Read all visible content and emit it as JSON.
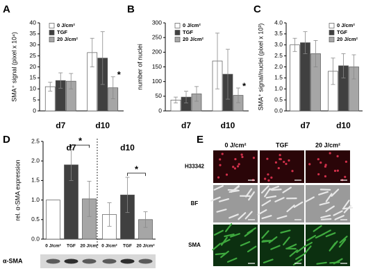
{
  "chart_data": [
    {
      "type": "bar",
      "panel": "A",
      "ylabel": "SMA⁺ signal (pixel x 10⁴)",
      "categories": [
        "d7",
        "d10"
      ],
      "series": [
        {
          "name": "0 J/cm²",
          "color": "#ffffff",
          "values": [
            11,
            26.5
          ],
          "errors": [
            2,
            6.5
          ]
        },
        {
          "name": "TGF",
          "color": "#404040",
          "values": [
            13.8,
            24
          ],
          "errors": [
            3.5,
            12
          ]
        },
        {
          "name": "20 J/cm²",
          "color": "#a6a6a6",
          "values": [
            13.5,
            10.5
          ],
          "errors": [
            3.5,
            5
          ]
        }
      ],
      "ylim": [
        0,
        40
      ],
      "yticks": [
        0,
        5,
        10,
        15,
        20,
        25,
        30,
        35,
        40
      ],
      "legend": "upper left",
      "annotations": [
        {
          "text": "*",
          "category": "d10",
          "series": "20 J/cm²"
        }
      ]
    },
    {
      "type": "bar",
      "panel": "B",
      "ylabel": "number of nuclei",
      "categories": [
        "d7",
        "d10"
      ],
      "series": [
        {
          "name": "0 J/cm²",
          "color": "#ffffff",
          "values": [
            37,
            170
          ],
          "errors": [
            10,
            95
          ]
        },
        {
          "name": "TGF",
          "color": "#404040",
          "values": [
            47,
            125
          ],
          "errors": [
            20,
            85
          ]
        },
        {
          "name": "20 J/cm²",
          "color": "#a6a6a6",
          "values": [
            58,
            53
          ],
          "errors": [
            25,
            25
          ]
        }
      ],
      "ylim": [
        0,
        300
      ],
      "yticks": [
        0,
        50,
        100,
        150,
        200,
        250,
        300
      ],
      "legend": "upper left",
      "annotations": [
        {
          "text": "*",
          "category": "d10",
          "series": "20 J/cm²"
        }
      ]
    },
    {
      "type": "bar",
      "panel": "C",
      "ylabel": "SMA⁺ signal/nuclei (pixel x 10³)",
      "categories": [
        "d7",
        "d10"
      ],
      "series": [
        {
          "name": "0 J/cm²",
          "color": "#ffffff",
          "values": [
            3.0,
            1.8
          ],
          "errors": [
            0.3,
            0.6
          ]
        },
        {
          "name": "TGF",
          "color": "#404040",
          "values": [
            3.1,
            2.05
          ],
          "errors": [
            0.5,
            0.55
          ]
        },
        {
          "name": "20 J/cm²",
          "color": "#a6a6a6",
          "values": [
            2.6,
            2.0
          ],
          "errors": [
            0.6,
            0.55
          ]
        }
      ],
      "ylim": [
        0,
        4
      ],
      "yticks": [
        {
          "value": 0,
          "label": "0.0"
        },
        0.5,
        {
          "value": 1,
          "label": "1.0"
        },
        1.5,
        {
          "value": 2,
          "label": "2.0"
        },
        2.5,
        {
          "value": 3,
          "label": "3.0"
        },
        3.5,
        {
          "value": 4,
          "label": "4.0"
        }
      ],
      "legend": "upper right",
      "annotations": []
    },
    {
      "type": "grouped-bar",
      "panel": "D",
      "ylabel": "rel. α-SMA expression",
      "categories": [
        "d7",
        "d10"
      ],
      "series": [
        {
          "name": "0 J/cm²",
          "color": "#ffffff",
          "values": [
            1.0,
            0.63
          ],
          "errors": [
            null,
            0.3
          ]
        },
        {
          "name": "TGF",
          "color": "#404040",
          "values": [
            1.9,
            1.13
          ],
          "errors": [
            0.4,
            0.45
          ]
        },
        {
          "name": "20 J/cm²",
          "color": "#a6a6a6",
          "values": [
            1.03,
            0.5
          ],
          "errors": [
            0.45,
            0.2
          ]
        }
      ],
      "ylim": [
        0,
        2.5
      ],
      "yticks": [
        {
          "value": 0,
          "label": "0.0"
        },
        0.5,
        {
          "value": 1,
          "label": "1.0"
        },
        1.5,
        {
          "value": 2,
          "label": "2.0"
        },
        2.5
      ],
      "blot_label": "α-SMA",
      "annotations": [
        {
          "text": "*",
          "category": "d7",
          "from": "TGF",
          "to": "20 J/cm²"
        },
        {
          "text": "*",
          "category": "d10",
          "from": "TGF",
          "to": "20 J/cm²"
        }
      ]
    }
  ],
  "panel_e": {
    "panel": "E",
    "columns": [
      "0 J/cm²",
      "TGF",
      "20 J/cm²"
    ],
    "rows": [
      "H33342",
      "BF",
      "SMA"
    ]
  }
}
